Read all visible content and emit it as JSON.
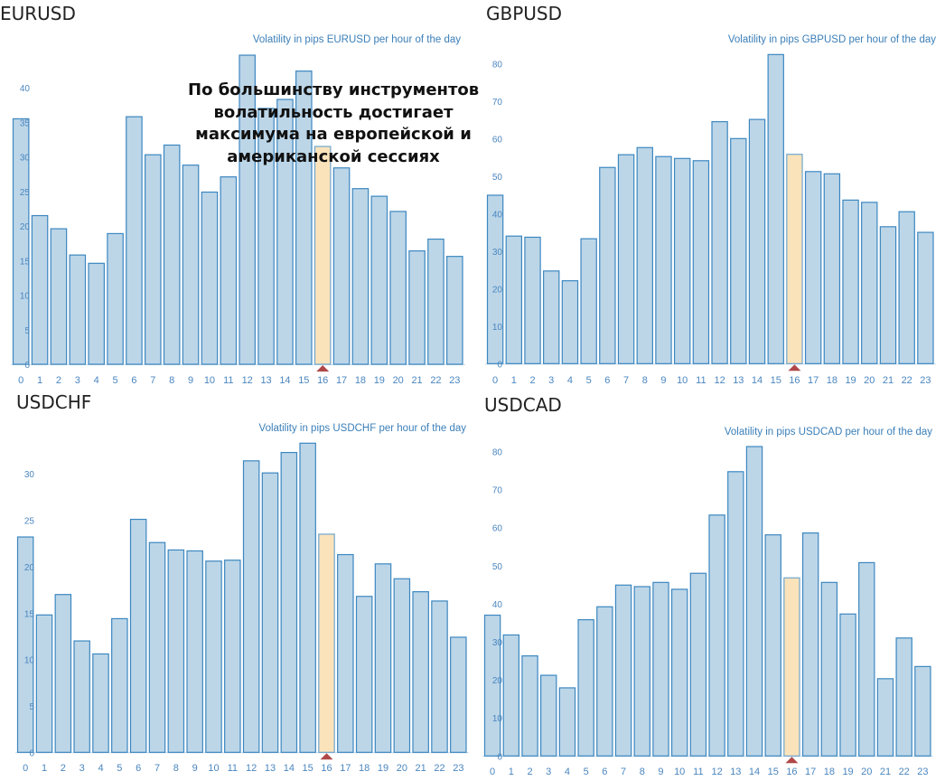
{
  "overlay_text": [
    "По большинству инструментов",
    "волатильность достигает",
    "максимума на европейской и",
    "американской сессиях"
  ],
  "colors": {
    "bar_fill": "#bcd6e8",
    "bar_stroke": "#3c87c0",
    "highlight_fill": "#fae3bb",
    "highlight_stroke": "#6ea6cf",
    "marker": "#b04848",
    "axis_text": "#4a86bf"
  },
  "chart_data": [
    {
      "type": "bar",
      "panel_title": "EURUSD",
      "title": "Volatility in pips EURUSD per hour of the day",
      "categories": [
        "0",
        "1",
        "2",
        "3",
        "4",
        "5",
        "6",
        "7",
        "8",
        "9",
        "10",
        "11",
        "12",
        "13",
        "14",
        "15",
        "16",
        "17",
        "18",
        "19",
        "20",
        "21",
        "22",
        "23"
      ],
      "values": [
        35.5,
        21.5,
        19.6,
        15.8,
        14.6,
        18.9,
        35.8,
        30.3,
        31.7,
        28.8,
        24.9,
        27.1,
        44.7,
        37.0,
        38.3,
        42.4,
        31.5,
        28.4,
        25.4,
        24.3,
        22.1,
        16.4,
        18.1,
        15.6
      ],
      "yticks": [
        "0",
        "5",
        "10",
        "15",
        "20",
        "25",
        "30",
        "35",
        "40"
      ],
      "ytick_values": [
        0,
        5,
        10,
        15,
        20,
        25,
        30,
        35,
        40
      ],
      "highlight_index": 16,
      "grid": false
    },
    {
      "type": "bar",
      "panel_title": "GBPUSD",
      "title": "Volatility in pips GBPUSD per hour of the day",
      "categories": [
        "0",
        "1",
        "2",
        "3",
        "4",
        "5",
        "6",
        "7",
        "8",
        "9",
        "10",
        "11",
        "12",
        "13",
        "14",
        "15",
        "16",
        "17",
        "18",
        "19",
        "20",
        "21",
        "22",
        "23"
      ],
      "values": [
        44.9,
        34.0,
        33.7,
        24.7,
        22.1,
        33.3,
        52.3,
        55.7,
        57.6,
        55.2,
        54.7,
        54.1,
        64.5,
        60.0,
        65.1,
        82.4,
        55.8,
        51.2,
        50.6,
        43.6,
        43.0,
        36.5,
        40.5,
        35.0
      ],
      "yticks": [
        "0",
        "10",
        "20",
        "30",
        "40",
        "50",
        "60",
        "70",
        "80"
      ],
      "ytick_values": [
        0,
        10,
        20,
        30,
        40,
        50,
        60,
        70,
        80
      ],
      "highlight_index": 16,
      "grid": false
    },
    {
      "type": "bar",
      "panel_title": "USDCHF",
      "title": "Volatility in pips USDCHF per hour of the day",
      "categories": [
        "0",
        "1",
        "2",
        "3",
        "4",
        "5",
        "6",
        "7",
        "8",
        "9",
        "10",
        "11",
        "12",
        "13",
        "14",
        "15",
        "16",
        "17",
        "18",
        "19",
        "20",
        "21",
        "22",
        "23"
      ],
      "values": [
        23.2,
        14.8,
        17.0,
        12.0,
        10.6,
        14.4,
        25.1,
        22.6,
        21.8,
        21.7,
        20.6,
        20.7,
        31.4,
        30.1,
        32.3,
        33.3,
        23.5,
        21.3,
        16.8,
        20.3,
        18.7,
        17.3,
        16.3,
        12.4
      ],
      "yticks": [
        "0",
        "5",
        "10",
        "15",
        "20",
        "25",
        "30"
      ],
      "ytick_values": [
        0,
        5,
        10,
        15,
        20,
        25,
        30
      ],
      "highlight_index": 16,
      "grid": false
    },
    {
      "type": "bar",
      "panel_title": "USDCAD",
      "title": "Volatility in pips USDCAD per hour of the day",
      "categories": [
        "0",
        "1",
        "2",
        "3",
        "4",
        "5",
        "6",
        "7",
        "8",
        "9",
        "10",
        "11",
        "12",
        "13",
        "14",
        "15",
        "16",
        "17",
        "18",
        "19",
        "20",
        "21",
        "22",
        "23"
      ],
      "values": [
        37.0,
        31.8,
        26.3,
        21.2,
        17.9,
        35.8,
        39.2,
        44.9,
        44.5,
        45.6,
        43.8,
        48.0,
        63.3,
        74.7,
        81.3,
        58.1,
        46.8,
        58.6,
        45.6,
        37.3,
        50.8,
        20.3,
        31.0,
        23.5
      ],
      "yticks": [
        "0",
        "10",
        "20",
        "30",
        "40",
        "50",
        "60",
        "70",
        "80"
      ],
      "ytick_values": [
        0,
        10,
        20,
        30,
        40,
        50,
        60,
        70,
        80
      ],
      "highlight_index": 16,
      "grid": false
    }
  ]
}
